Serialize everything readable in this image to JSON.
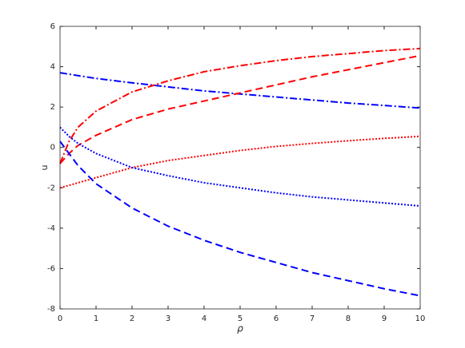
{
  "chart_data": {
    "type": "line",
    "xlabel": "ρ",
    "ylabel": "u",
    "x": [
      0,
      0.25,
      0.5,
      1,
      2,
      3,
      4,
      5,
      6,
      7,
      8,
      9,
      10
    ],
    "series": [
      {
        "color": "#0000ff",
        "linestyle": "dashdot",
        "values": [
          3.7,
          3.63,
          3.56,
          3.42,
          3.2,
          3.0,
          2.8,
          2.65,
          2.5,
          2.35,
          2.2,
          2.08,
          1.95
        ]
      },
      {
        "color": "#ff0000",
        "linestyle": "dashdot",
        "values": [
          -0.8,
          0.3,
          1.0,
          1.8,
          2.75,
          3.3,
          3.75,
          4.05,
          4.3,
          4.5,
          4.65,
          4.8,
          4.9
        ]
      },
      {
        "color": "#ff0000",
        "linestyle": "dashed",
        "values": [
          -0.8,
          -0.3,
          0.1,
          0.6,
          1.38,
          1.9,
          2.3,
          2.7,
          3.1,
          3.5,
          3.85,
          4.2,
          4.55
        ]
      },
      {
        "color": "#ff0000",
        "linestyle": "dotted",
        "values": [
          -2.0,
          -1.88,
          -1.75,
          -1.5,
          -1.0,
          -0.65,
          -0.4,
          -0.15,
          0.05,
          0.2,
          0.33,
          0.45,
          0.55
        ]
      },
      {
        "color": "#0000ff",
        "linestyle": "dotted",
        "values": [
          1.0,
          0.55,
          0.2,
          -0.3,
          -1.0,
          -1.4,
          -1.75,
          -2.0,
          -2.25,
          -2.45,
          -2.6,
          -2.75,
          -2.9
        ]
      },
      {
        "color": "#0000ff",
        "linestyle": "dashed",
        "values": [
          0.3,
          -0.3,
          -0.9,
          -1.8,
          -3.0,
          -3.9,
          -4.6,
          -5.2,
          -5.7,
          -6.2,
          -6.6,
          -7.0,
          -7.35
        ]
      }
    ],
    "xlim": [
      0,
      10
    ],
    "xticks": [
      0,
      1,
      2,
      3,
      4,
      5,
      6,
      7,
      8,
      9,
      10
    ],
    "ylim": [
      -8,
      6
    ],
    "yticks": [
      -8,
      -6,
      -4,
      -2,
      0,
      2,
      4,
      6
    ],
    "grid": false
  }
}
